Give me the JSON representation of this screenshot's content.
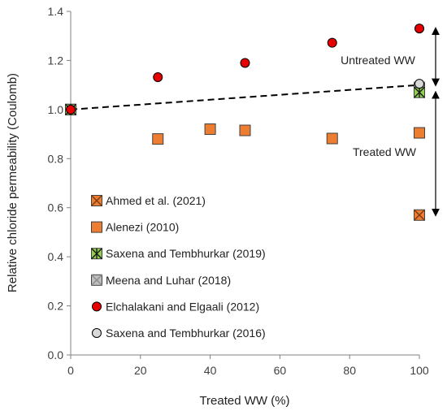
{
  "chart_data": {
    "type": "scatter",
    "title": "",
    "xlabel": "Treated WW (%)",
    "ylabel": "Relative chloride permeability (Coulomb)",
    "xlim": [
      0,
      100
    ],
    "ylim": [
      0,
      1.4
    ],
    "xticks": [
      0,
      20,
      40,
      60,
      80,
      100
    ],
    "yticks": [
      "0.0",
      "0.2",
      "0.4",
      "0.6",
      "0.8",
      "1.0",
      "1.2",
      "1.4"
    ],
    "grid": false,
    "legend_position": "bottom-left",
    "series": [
      {
        "name": "Ahmed et al. (2021)",
        "marker": "square-x",
        "color": "#ed7d31",
        "points": [
          [
            0,
            1.0
          ],
          [
            100,
            0.57
          ]
        ]
      },
      {
        "name": "Alenezi (2010)",
        "marker": "square",
        "color": "#ed7d31",
        "points": [
          [
            25,
            0.88
          ],
          [
            40,
            0.92
          ],
          [
            50,
            0.915
          ],
          [
            75,
            0.882
          ],
          [
            100,
            0.905
          ]
        ]
      },
      {
        "name": "Saxena and Tembhurkar (2019)",
        "marker": "square-asterisk",
        "color": "#92d050",
        "points": [
          [
            0,
            1.0
          ],
          [
            100,
            1.07
          ]
        ]
      },
      {
        "name": "Meena and Luhar (2018)",
        "marker": "square-x",
        "color": "#bfbfbf",
        "points": [
          [
            0,
            1.0
          ],
          [
            100,
            1.09
          ]
        ]
      },
      {
        "name": "Elchalakani and Elgaali (2012)",
        "marker": "circle",
        "color": "#e60000",
        "points": [
          [
            0,
            1.0
          ],
          [
            25,
            1.132
          ],
          [
            50,
            1.19
          ],
          [
            75,
            1.272
          ],
          [
            100,
            1.33
          ]
        ]
      },
      {
        "name": "Saxena and Tembhurkar (2016)",
        "marker": "circle-open",
        "color": "#d9d9d9",
        "points": [
          [
            100,
            1.105
          ]
        ]
      }
    ],
    "trendline": {
      "style": "dashed",
      "color": "#000000",
      "points": [
        [
          0,
          1.0
        ],
        [
          100,
          1.1
        ]
      ]
    },
    "annotations": [
      {
        "text": "Untreated WW",
        "arrow_from": 1.1,
        "arrow_to": 1.33
      },
      {
        "text": "Treated WW",
        "arrow_from": 0.57,
        "arrow_to": 1.07
      }
    ]
  }
}
